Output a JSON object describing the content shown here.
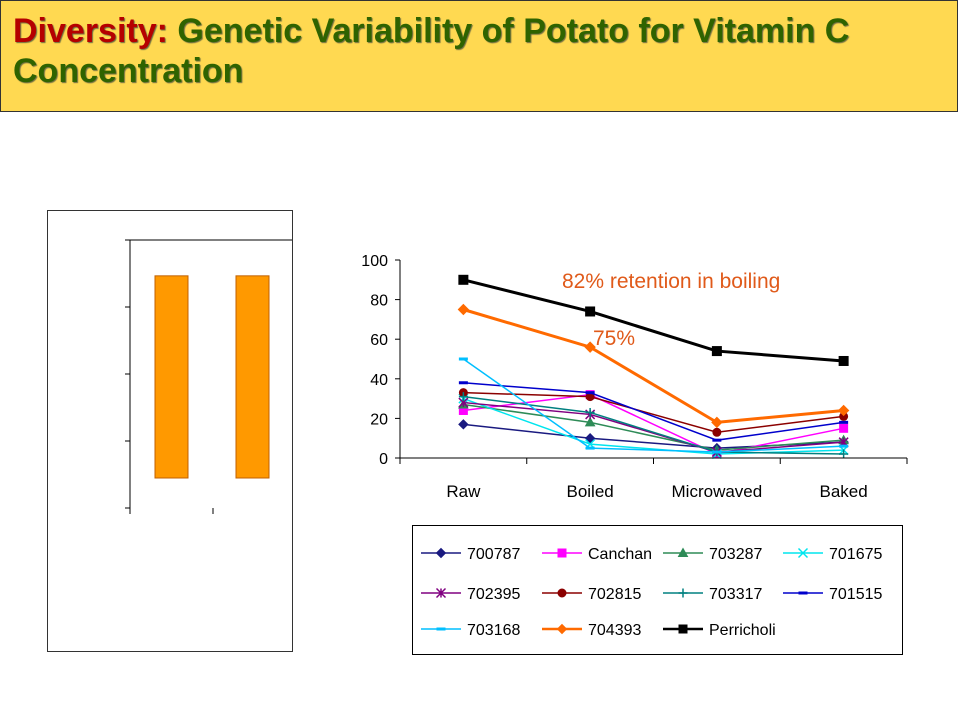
{
  "title": {
    "lead": "Diversity:",
    "rest": " Genetic Variability of Potato for Vitamin C Concentration"
  },
  "colors": {
    "title_bg": "#ffd951",
    "title_lead": "#b50000",
    "title_rest": "#2f6300",
    "annotation": "#e05a1a",
    "bar": "#ff9900"
  },
  "chart_data": [
    {
      "type": "bar",
      "categories": [
        "",
        ""
      ],
      "values": [
        0.87,
        0.87
      ],
      "title": "",
      "xlabel": "",
      "ylabel": "",
      "ylim": [
        0,
        1
      ],
      "note": "unlabeled axes; bar heights expressed as fraction of axis height"
    },
    {
      "type": "line",
      "categories": [
        "Raw",
        "Boiled",
        "Microwaved",
        "Baked"
      ],
      "ylim": [
        0,
        100
      ],
      "yticks": [
        0,
        20,
        40,
        60,
        80,
        100
      ],
      "title": "",
      "xlabel": "",
      "ylabel": "",
      "legend_position": "bottom",
      "annotations": [
        "82% retention in boiling",
        "75%"
      ],
      "series": [
        {
          "name": "700787",
          "color": "#1a1a80",
          "marker": "diamond",
          "values": [
            17,
            10,
            5,
            8
          ]
        },
        {
          "name": "Canchan",
          "color": "#ff00ff",
          "marker": "square",
          "values": [
            24,
            32,
            2,
            15
          ]
        },
        {
          "name": "703287",
          "color": "#2e8b57",
          "marker": "triangle",
          "values": [
            27,
            18,
            4,
            9
          ]
        },
        {
          "name": "701675",
          "color": "#00e5ee",
          "marker": "x",
          "values": [
            30,
            7,
            2,
            4
          ]
        },
        {
          "name": "702395",
          "color": "#800080",
          "marker": "star",
          "values": [
            28,
            22,
            3,
            8
          ]
        },
        {
          "name": "702815",
          "color": "#8b0000",
          "marker": "circle",
          "values": [
            33,
            31,
            13,
            21
          ]
        },
        {
          "name": "703317",
          "color": "#008080",
          "marker": "plus",
          "values": [
            31,
            23,
            3,
            2
          ]
        },
        {
          "name": "701515",
          "color": "#0000cc",
          "marker": "dash",
          "values": [
            38,
            33,
            9,
            18
          ]
        },
        {
          "name": "703168",
          "color": "#00bfff",
          "marker": "dash",
          "values": [
            50,
            5,
            3,
            6
          ]
        },
        {
          "name": "704393",
          "color": "#ff6a00",
          "marker": "diamond",
          "values": [
            75,
            56,
            18,
            24
          ]
        },
        {
          "name": "Perricholi",
          "color": "#000000",
          "marker": "square",
          "values": [
            90,
            74,
            54,
            49
          ]
        }
      ]
    }
  ]
}
